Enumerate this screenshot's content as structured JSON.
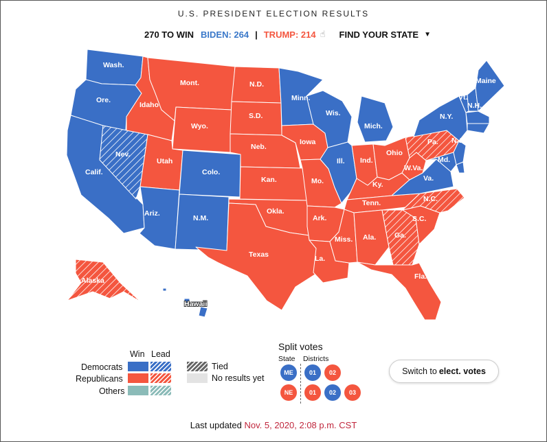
{
  "title": "U.S. PRESIDENT ELECTION RESULTS",
  "scoreboard": {
    "threshold": "270 TO WIN",
    "biden": "BIDEN: 264",
    "separator": "|",
    "trump": "TRUMP: 214",
    "hand_icon": "pointer-hand-icon",
    "find_state": "FIND YOUR STATE",
    "find_caret_icon": "chevron-down-icon"
  },
  "colors": {
    "dem_win": "#3a6fc6",
    "rep_win": "#f4563f",
    "others": "#8bbbb8",
    "tied": "#666666",
    "no_results": "#e3e3e3",
    "timestamp": "#c0263c"
  },
  "states": [
    {
      "label": "Wash.",
      "result": "dem-win"
    },
    {
      "label": "Ore.",
      "result": "dem-win"
    },
    {
      "label": "Calif.",
      "result": "dem-win"
    },
    {
      "label": "Nev.",
      "result": "dem-lead"
    },
    {
      "label": "Idaho",
      "result": "rep-win"
    },
    {
      "label": "Mont.",
      "result": "rep-win"
    },
    {
      "label": "Wyo.",
      "result": "rep-win"
    },
    {
      "label": "Utah",
      "result": "rep-win"
    },
    {
      "label": "Colo.",
      "result": "dem-win"
    },
    {
      "label": "Ariz.",
      "result": "dem-win"
    },
    {
      "label": "N.M.",
      "result": "dem-win"
    },
    {
      "label": "N.D.",
      "result": "rep-win"
    },
    {
      "label": "S.D.",
      "result": "rep-win"
    },
    {
      "label": "Neb.",
      "result": "rep-win"
    },
    {
      "label": "Kan.",
      "result": "rep-win"
    },
    {
      "label": "Okla.",
      "result": "rep-win"
    },
    {
      "label": "Texas",
      "result": "rep-win"
    },
    {
      "label": "Minn.",
      "result": "dem-win"
    },
    {
      "label": "Iowa",
      "result": "rep-win"
    },
    {
      "label": "Mo.",
      "result": "rep-win"
    },
    {
      "label": "Ark.",
      "result": "rep-win"
    },
    {
      "label": "La.",
      "result": "rep-win"
    },
    {
      "label": "Wis.",
      "result": "dem-win"
    },
    {
      "label": "Ill.",
      "result": "dem-win"
    },
    {
      "label": "Mich.",
      "result": "dem-win"
    },
    {
      "label": "Ind.",
      "result": "rep-win"
    },
    {
      "label": "Ohio",
      "result": "rep-win"
    },
    {
      "label": "Ky.",
      "result": "rep-win"
    },
    {
      "label": "Tenn.",
      "result": "rep-win"
    },
    {
      "label": "Miss.",
      "result": "rep-win"
    },
    {
      "label": "Ala.",
      "result": "rep-win"
    },
    {
      "label": "Ga.",
      "result": "rep-lead"
    },
    {
      "label": "Fla.",
      "result": "rep-win"
    },
    {
      "label": "S.C.",
      "result": "rep-win"
    },
    {
      "label": "N.C.",
      "result": "rep-lead"
    },
    {
      "label": "Va.",
      "result": "dem-win"
    },
    {
      "label": "W.Va.",
      "result": "rep-win"
    },
    {
      "label": "Pa.",
      "result": "rep-lead"
    },
    {
      "label": "N.Y.",
      "result": "dem-win"
    },
    {
      "label": "Md.",
      "result": "dem-win"
    },
    {
      "label": "N.J.",
      "result": "dem-win"
    },
    {
      "label": "Vt.",
      "result": "dem-win"
    },
    {
      "label": "N.H.",
      "result": "dem-win"
    },
    {
      "label": "Maine",
      "result": "dem-win"
    },
    {
      "label": "Alaska",
      "result": "rep-lead"
    },
    {
      "label": "Hawaii",
      "result": "dem-win"
    }
  ],
  "legend": {
    "col_win": "Win",
    "col_lead": "Lead",
    "democrats": "Democrats",
    "republicans": "Republicans",
    "others": "Others",
    "tied": "Tied",
    "no_results": "No results yet"
  },
  "split_votes": {
    "title": "Split votes",
    "state_header": "State",
    "districts_header": "Districts",
    "maine": {
      "state": "ME",
      "districts": [
        "01",
        "02"
      ]
    },
    "nebraska": {
      "state": "NE",
      "districts": [
        "01",
        "02",
        "03"
      ]
    }
  },
  "switch_button": {
    "prefix": "Switch to ",
    "bold": "elect. votes"
  },
  "updated": {
    "prefix": "Last updated ",
    "timestamp": "Nov. 5, 2020, 2:08 p.m. CST"
  }
}
